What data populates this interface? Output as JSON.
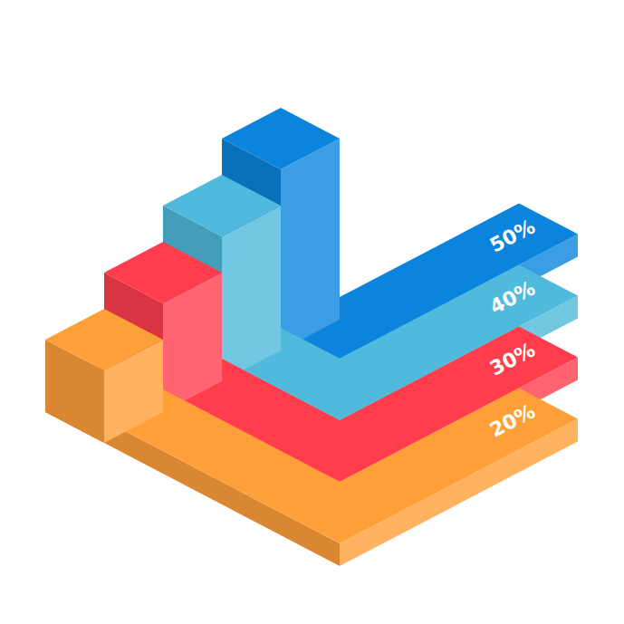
{
  "chart_data": {
    "type": "bar",
    "categories": [
      null,
      null,
      null,
      null
    ],
    "values": [
      20,
      30,
      40,
      50
    ],
    "value_labels": [
      "20%",
      "30%",
      "40%",
      "50%"
    ],
    "colors": [
      "#ff9f38",
      "#ff3d4c",
      "#4fbadb",
      "#0a84dd"
    ],
    "data_labels": true,
    "tick_labels": false
  }
}
